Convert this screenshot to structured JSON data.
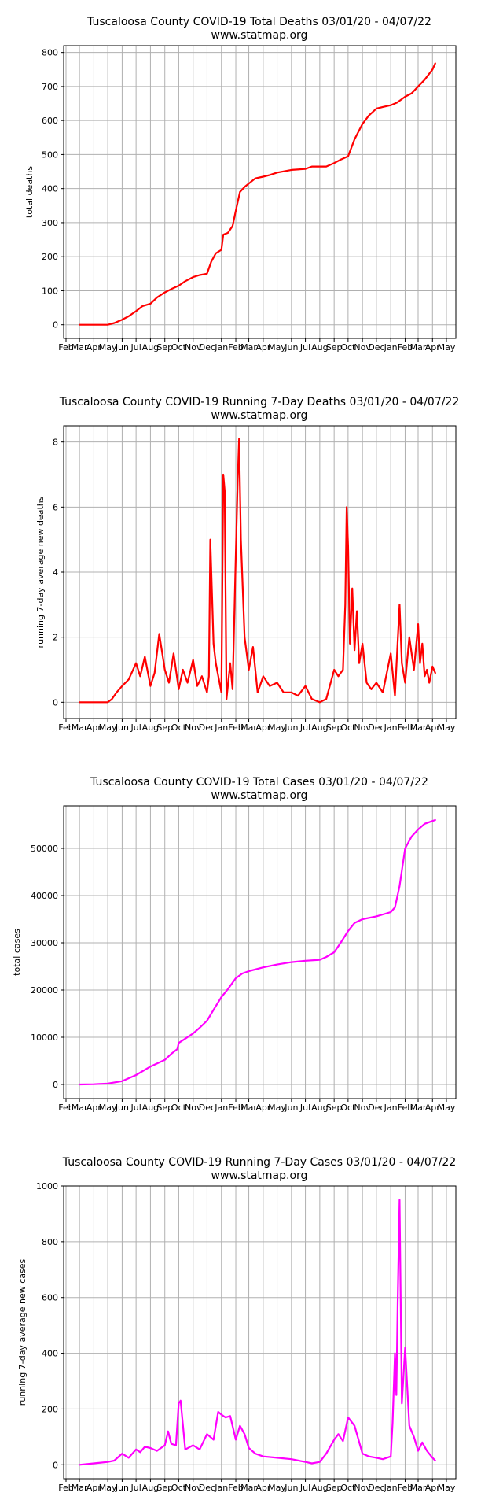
{
  "x_months": [
    "Feb",
    "Mar",
    "Apr",
    "May",
    "Jun",
    "Jul",
    "Aug",
    "Sep",
    "Oct",
    "Nov",
    "Dec",
    "Jan",
    "Feb",
    "Mar",
    "Apr",
    "May",
    "Jun",
    "Jul",
    "Aug",
    "Sep",
    "Oct",
    "Nov",
    "Dec",
    "Jan",
    "Feb",
    "Mar",
    "Apr",
    "May"
  ],
  "chart_data": [
    {
      "type": "line",
      "title": "Tuscaloosa County COVID-19 Total Deaths 03/01/20 - 04/07/22",
      "subtitle": "www.statmap.org",
      "ylabel": "total deaths",
      "xlabel": "",
      "color": "#ff0000",
      "ylim": [
        -40,
        820
      ],
      "yticks": [
        0,
        100,
        200,
        300,
        400,
        500,
        600,
        700,
        800
      ],
      "grid": true,
      "series": [
        {
          "x": [
            "2020-03-01",
            "2020-04-01",
            "2020-05-01",
            "2020-05-15",
            "2020-06-01",
            "2020-06-15",
            "2020-07-01",
            "2020-07-15",
            "2020-08-01",
            "2020-08-15",
            "2020-09-01",
            "2020-09-15",
            "2020-10-01",
            "2020-10-15",
            "2020-11-01",
            "2020-11-15",
            "2020-12-01",
            "2020-12-10",
            "2020-12-20",
            "2021-01-01",
            "2021-01-05",
            "2021-01-15",
            "2021-01-25",
            "2021-02-01",
            "2021-02-10",
            "2021-02-20",
            "2021-03-01",
            "2021-03-15",
            "2021-04-01",
            "2021-04-15",
            "2021-05-01",
            "2021-06-01",
            "2021-07-01",
            "2021-07-15",
            "2021-08-01",
            "2021-08-15",
            "2021-09-01",
            "2021-09-15",
            "2021-10-01",
            "2021-10-15",
            "2021-11-01",
            "2021-11-15",
            "2021-12-01",
            "2021-12-15",
            "2022-01-01",
            "2022-01-15",
            "2022-02-01",
            "2022-02-15",
            "2022-03-01",
            "2022-03-15",
            "2022-04-01",
            "2022-04-07"
          ],
          "y": [
            0,
            0,
            0,
            5,
            15,
            25,
            40,
            55,
            62,
            80,
            95,
            105,
            115,
            128,
            140,
            146,
            150,
            185,
            210,
            220,
            265,
            270,
            290,
            335,
            390,
            405,
            415,
            430,
            435,
            440,
            447,
            455,
            458,
            465,
            465,
            465,
            475,
            485,
            495,
            545,
            590,
            615,
            635,
            640,
            645,
            653,
            670,
            680,
            700,
            720,
            750,
            768
          ]
        }
      ]
    },
    {
      "type": "line",
      "title": "Tuscaloosa County COVID-19 Running 7-Day Deaths 03/01/20 - 04/07/22",
      "subtitle": "www.statmap.org",
      "ylabel": "running 7-day average new deaths",
      "xlabel": "",
      "color": "#ff0000",
      "ylim": [
        -0.5,
        8.5
      ],
      "yticks": [
        0,
        2,
        4,
        6,
        8
      ],
      "grid": true,
      "series": [
        {
          "x": [
            "2020-03-01",
            "2020-04-01",
            "2020-05-01",
            "2020-05-10",
            "2020-05-20",
            "2020-06-01",
            "2020-06-15",
            "2020-07-01",
            "2020-07-10",
            "2020-07-20",
            "2020-08-01",
            "2020-08-10",
            "2020-08-20",
            "2020-09-01",
            "2020-09-10",
            "2020-09-20",
            "2020-10-01",
            "2020-10-10",
            "2020-10-20",
            "2020-11-01",
            "2020-11-10",
            "2020-11-20",
            "2020-12-01",
            "2020-12-05",
            "2020-12-08",
            "2020-12-15",
            "2020-12-20",
            "2021-01-01",
            "2021-01-05",
            "2021-01-08",
            "2021-01-12",
            "2021-01-20",
            "2021-01-25",
            "2021-02-01",
            "2021-02-05",
            "2021-02-08",
            "2021-02-12",
            "2021-02-20",
            "2021-03-01",
            "2021-03-10",
            "2021-03-20",
            "2021-04-01",
            "2021-04-15",
            "2021-05-01",
            "2021-05-15",
            "2021-06-01",
            "2021-06-15",
            "2021-07-01",
            "2021-07-15",
            "2021-08-01",
            "2021-08-15",
            "2021-09-01",
            "2021-09-10",
            "2021-09-20",
            "2021-09-25",
            "2021-09-28",
            "2021-10-01",
            "2021-10-05",
            "2021-10-10",
            "2021-10-15",
            "2021-10-20",
            "2021-10-25",
            "2021-11-01",
            "2021-11-10",
            "2021-11-20",
            "2021-12-01",
            "2021-12-15",
            "2022-01-01",
            "2022-01-10",
            "2022-01-20",
            "2022-01-25",
            "2022-02-01",
            "2022-02-10",
            "2022-02-20",
            "2022-03-01",
            "2022-03-05",
            "2022-03-10",
            "2022-03-15",
            "2022-03-20",
            "2022-03-25",
            "2022-04-01",
            "2022-04-07"
          ],
          "y": [
            0,
            0,
            0,
            0.1,
            0.3,
            0.5,
            0.7,
            1.2,
            0.8,
            1.4,
            0.5,
            0.9,
            2.1,
            1.0,
            0.6,
            1.5,
            0.4,
            1.0,
            0.6,
            1.3,
            0.5,
            0.8,
            0.3,
            0.8,
            5.0,
            1.8,
            1.2,
            0.3,
            7.0,
            6.5,
            0.1,
            1.2,
            0.4,
            4.5,
            6.8,
            8.1,
            5.0,
            2.0,
            1.0,
            1.7,
            0.3,
            0.8,
            0.5,
            0.6,
            0.3,
            0.3,
            0.2,
            0.5,
            0.1,
            0.0,
            0.1,
            1.0,
            0.8,
            1.0,
            3.0,
            6.0,
            4.8,
            1.8,
            3.5,
            1.6,
            2.8,
            1.2,
            1.8,
            0.6,
            0.4,
            0.6,
            0.3,
            1.5,
            0.2,
            3.0,
            1.2,
            0.6,
            2.0,
            1.0,
            2.4,
            1.2,
            1.8,
            0.8,
            1.0,
            0.6,
            1.1,
            0.9
          ]
        }
      ]
    },
    {
      "type": "line",
      "title": "Tuscaloosa County COVID-19 Total Cases 03/01/20 - 04/07/22",
      "subtitle": "www.statmap.org",
      "ylabel": "total cases",
      "xlabel": "",
      "color": "#ff00ff",
      "ylim": [
        -3000,
        59000
      ],
      "yticks": [
        0,
        10000,
        20000,
        30000,
        40000,
        50000
      ],
      "grid": true,
      "series": [
        {
          "x": [
            "2020-03-01",
            "2020-04-01",
            "2020-05-01",
            "2020-06-01",
            "2020-07-01",
            "2020-08-01",
            "2020-09-01",
            "2020-09-15",
            "2020-09-28",
            "2020-10-01",
            "2020-10-15",
            "2020-11-01",
            "2020-11-15",
            "2020-12-01",
            "2020-12-15",
            "2021-01-01",
            "2021-01-15",
            "2021-02-01",
            "2021-02-15",
            "2021-03-01",
            "2021-04-01",
            "2021-05-01",
            "2021-06-01",
            "2021-07-01",
            "2021-08-01",
            "2021-08-15",
            "2021-09-01",
            "2021-09-15",
            "2021-10-01",
            "2021-10-15",
            "2021-11-01",
            "2021-12-01",
            "2021-12-15",
            "2022-01-01",
            "2022-01-10",
            "2022-01-20",
            "2022-02-01",
            "2022-02-15",
            "2022-03-01",
            "2022-03-15",
            "2022-04-01",
            "2022-04-07"
          ],
          "y": [
            0,
            50,
            200,
            700,
            2000,
            3800,
            5200,
            6500,
            7500,
            8800,
            9700,
            10800,
            12000,
            13500,
            15800,
            18500,
            20200,
            22500,
            23500,
            24000,
            24800,
            25400,
            25900,
            26200,
            26400,
            27000,
            28000,
            30000,
            32500,
            34200,
            35000,
            35600,
            36000,
            36500,
            37500,
            42000,
            50000,
            52500,
            54000,
            55200,
            55800,
            56000
          ]
        }
      ]
    },
    {
      "type": "line",
      "title": "Tuscaloosa County COVID-19 Running 7-Day Cases 03/01/20 - 04/07/22",
      "subtitle": "www.statmap.org",
      "ylabel": "running 7-day average new cases",
      "xlabel": "",
      "color": "#ff00ff",
      "ylim": [
        -50,
        1000
      ],
      "yticks": [
        0,
        200,
        400,
        600,
        800,
        1000
      ],
      "grid": true,
      "series": [
        {
          "x": [
            "2020-03-01",
            "2020-04-01",
            "2020-05-01",
            "2020-05-15",
            "2020-06-01",
            "2020-06-15",
            "2020-07-01",
            "2020-07-10",
            "2020-07-20",
            "2020-08-01",
            "2020-08-15",
            "2020-09-01",
            "2020-09-08",
            "2020-09-15",
            "2020-09-25",
            "2020-10-01",
            "2020-10-05",
            "2020-10-15",
            "2020-11-01",
            "2020-11-15",
            "2020-12-01",
            "2020-12-15",
            "2020-12-25",
            "2021-01-01",
            "2021-01-10",
            "2021-01-20",
            "2021-02-01",
            "2021-02-10",
            "2021-02-20",
            "2021-03-01",
            "2021-03-15",
            "2021-04-01",
            "2021-05-01",
            "2021-06-01",
            "2021-07-01",
            "2021-07-15",
            "2021-08-01",
            "2021-08-15",
            "2021-09-01",
            "2021-09-10",
            "2021-09-20",
            "2021-10-01",
            "2021-10-15",
            "2021-11-01",
            "2021-11-15",
            "2021-12-01",
            "2021-12-15",
            "2022-01-01",
            "2022-01-05",
            "2022-01-10",
            "2022-01-13",
            "2022-01-16",
            "2022-01-20",
            "2022-01-25",
            "2022-02-01",
            "2022-02-10",
            "2022-02-20",
            "2022-03-01",
            "2022-03-10",
            "2022-03-20",
            "2022-04-01",
            "2022-04-07"
          ],
          "y": [
            0,
            5,
            10,
            15,
            40,
            25,
            55,
            45,
            65,
            60,
            50,
            70,
            120,
            75,
            70,
            220,
            230,
            55,
            70,
            55,
            110,
            90,
            190,
            180,
            170,
            175,
            90,
            140,
            110,
            60,
            40,
            30,
            25,
            20,
            10,
            5,
            10,
            40,
            90,
            110,
            85,
            170,
            140,
            40,
            30,
            25,
            20,
            30,
            150,
            400,
            250,
            580,
            950,
            220,
            420,
            140,
            100,
            50,
            80,
            50,
            25,
            15
          ]
        }
      ]
    }
  ]
}
